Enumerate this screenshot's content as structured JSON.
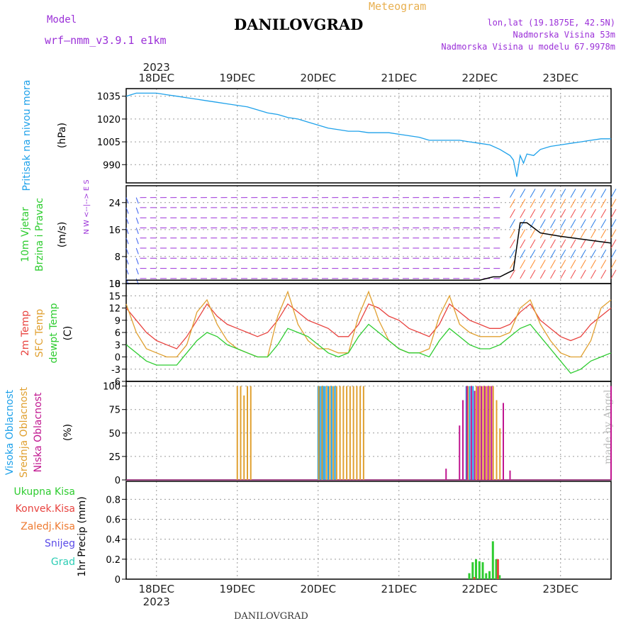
{
  "header": {
    "model_label": "Model",
    "model_name": "wrf—nmm_v3.9.1 e1km",
    "title": "DANILOVGRAD",
    "subtitle": "Meteogram",
    "coords": "lon,lat (19.1875E, 42.5N)",
    "elevation": "Nadmorska Visina 53m",
    "model_elevation": "Nadmorska Visina u modelu 67.9978m",
    "watermark": "made by Angel",
    "footer": "DANILOVGRAD"
  },
  "colors": {
    "pressure": "#1ea1ea",
    "wind": "#9b30d8",
    "temp2m": "#e8433f",
    "sfc": "#e0a030",
    "dewpt": "#2ecc30",
    "cloud_high": "#1ea1ea",
    "cloud_mid": "#e0a030",
    "cloud_low": "#c0158f",
    "precip_total": "#2ecc30",
    "precip_conv": "#e8433f",
    "precip_strat": "#ee7a30",
    "snow": "#5a4ae8",
    "graupel": "#2ecdb5",
    "label_black": "#000000"
  },
  "chart_data": [
    {
      "type": "line",
      "panel": "pressure",
      "xlabel_top": [
        "2023",
        "18DEC",
        "19DEC",
        "20DEC",
        "21DEC",
        "22DEC",
        "23DEC"
      ],
      "ylabel": [
        "Pritisak na nivou mora",
        "(hPa)"
      ],
      "yticks": [
        "1035",
        "1020",
        "1005",
        "990"
      ],
      "ylim": [
        978,
        1040
      ],
      "x": [
        -9,
        -6,
        -3,
        0,
        3,
        6,
        9,
        12,
        15,
        18,
        21,
        24,
        27,
        30,
        33,
        36,
        39,
        42,
        45,
        48,
        51,
        54,
        57,
        60,
        63,
        66,
        69,
        72,
        75,
        78,
        81,
        84,
        87,
        90,
        93,
        96,
        99,
        102,
        105,
        106,
        107,
        108,
        109,
        110,
        112,
        114,
        117,
        120,
        123,
        126,
        129,
        132,
        135
      ],
      "series": [
        {
          "values": [
            1035,
            1037,
            1037,
            1037,
            1036,
            1035,
            1034,
            1033,
            1032,
            1031,
            1030,
            1029,
            1028,
            1026,
            1024,
            1023,
            1021,
            1020,
            1018,
            1016,
            1014,
            1013,
            1012,
            1012,
            1011,
            1011,
            1011,
            1010,
            1009,
            1008,
            1006,
            1006,
            1006,
            1006,
            1005,
            1004,
            1003,
            1000,
            996,
            993,
            982,
            996,
            991,
            997,
            996,
            1000,
            1002,
            1003,
            1004,
            1005,
            1006,
            1007,
            1007
          ]
        }
      ]
    },
    {
      "type": "line",
      "panel": "wind",
      "ylabel": [
        "10m Vjetar",
        "Brzina i Pravac",
        "(m/s)"
      ],
      "compass": "N\nW <--|--> E\nS",
      "yticks": [
        "24",
        "16",
        "8",
        "0"
      ],
      "ylim": [
        0,
        29
      ],
      "x": [
        -9,
        0,
        24,
        48,
        72,
        96,
        100,
        102,
        104,
        106,
        108,
        110,
        114,
        120,
        135
      ],
      "series": [
        {
          "name": "wind speed",
          "values": [
            1,
            1,
            1,
            1,
            1,
            1,
            2,
            2,
            3,
            4,
            18,
            18,
            15,
            14,
            12
          ]
        }
      ]
    },
    {
      "type": "line",
      "panel": "temperature",
      "ylabel": [
        "2m Temp",
        "SFC Temp",
        "dewpt Temp",
        "(C)"
      ],
      "yticks": [
        "18",
        "15",
        "12",
        "9",
        "6",
        "3",
        "0",
        "-3",
        "-6"
      ],
      "ylim": [
        -6,
        18
      ],
      "x": [
        -9,
        -6,
        -3,
        0,
        3,
        6,
        9,
        12,
        15,
        18,
        21,
        24,
        27,
        30,
        33,
        36,
        39,
        42,
        45,
        48,
        51,
        54,
        57,
        60,
        63,
        66,
        69,
        72,
        75,
        78,
        81,
        84,
        87,
        90,
        93,
        96,
        99,
        102,
        105,
        108,
        111,
        114,
        117,
        120,
        123,
        126,
        129,
        132,
        135
      ],
      "series": [
        {
          "name": "2m Temp",
          "values": [
            12,
            9,
            6,
            4,
            3,
            2,
            5,
            9,
            13,
            10,
            8,
            7,
            6,
            5,
            6,
            9,
            13,
            11,
            9,
            8,
            7,
            5,
            5,
            8,
            13,
            12,
            10,
            9,
            7,
            6,
            5,
            8,
            13,
            11,
            9,
            8,
            7,
            7,
            8,
            11,
            13,
            9,
            7,
            5,
            4,
            5,
            8,
            10,
            12
          ]
        },
        {
          "name": "SFC Temp",
          "values": [
            13,
            6,
            2,
            1,
            0,
            0,
            3,
            11,
            14,
            8,
            4,
            2,
            1,
            0,
            0,
            10,
            16,
            8,
            4,
            2,
            2,
            1,
            1,
            10,
            16,
            9,
            4,
            2,
            1,
            1,
            2,
            10,
            15,
            8,
            6,
            5,
            5,
            5,
            6,
            12,
            14,
            8,
            4,
            1,
            0,
            0,
            4,
            12,
            14
          ]
        },
        {
          "name": "dewpt Temp",
          "values": [
            3,
            1,
            -1,
            -2,
            -2,
            -2,
            1,
            4,
            6,
            5,
            3,
            2,
            1,
            0,
            0,
            3,
            7,
            6,
            5,
            3,
            1,
            0,
            1,
            5,
            8,
            6,
            4,
            2,
            1,
            1,
            0,
            4,
            7,
            5,
            3,
            2,
            2,
            3,
            5,
            7,
            8,
            5,
            2,
            -1,
            -4,
            -3,
            -1,
            0,
            1
          ]
        }
      ]
    },
    {
      "type": "bar",
      "panel": "clouds",
      "ylabel": [
        "Visoka Oblacnost",
        "Srednja Oblacnost",
        "Niska Oblacnost",
        "(%)"
      ],
      "yticks": [
        "100",
        "75",
        "50",
        "25",
        "0"
      ],
      "ylim": [
        0,
        105
      ],
      "series": [
        {
          "name": "Visoka Oblacnost",
          "x": [
            48,
            48.5,
            49,
            49.5,
            50,
            51,
            52,
            53,
            92,
            93,
            94
          ],
          "values": [
            100,
            100,
            100,
            100,
            100,
            100,
            100,
            100,
            100,
            100,
            100
          ]
        },
        {
          "name": "Srednja Oblacnost",
          "x": [
            24,
            25,
            26,
            27,
            28,
            48.2,
            49.2,
            50.5,
            51.5,
            52.5,
            53.5,
            54.5,
            55.5,
            56.5,
            57.5,
            58.5,
            59.5,
            60.5,
            61.5,
            92.5,
            95,
            96,
            97,
            98,
            99,
            100,
            101,
            102,
            103
          ],
          "values": [
            100,
            100,
            90,
            100,
            100,
            100,
            100,
            100,
            100,
            100,
            100,
            100,
            100,
            100,
            100,
            100,
            100,
            100,
            100,
            100,
            100,
            100,
            100,
            100,
            100,
            100,
            85,
            55,
            50
          ]
        },
        {
          "name": "Niska Oblacnost",
          "x": [
            86,
            90,
            91,
            92.2,
            93.5,
            94.5,
            95.5,
            96.5,
            97.5,
            98.5,
            99.5,
            103,
            105,
            135
          ],
          "values": [
            12,
            58,
            85,
            100,
            100,
            95,
            100,
            100,
            100,
            100,
            100,
            82,
            10,
            100
          ]
        }
      ]
    },
    {
      "type": "bar",
      "panel": "precipitation",
      "ylabel": [
        "Ukupna Kisa",
        "Konvek.Kisa",
        "Zaledj.Kisa",
        "Snijeg",
        "Grad",
        "1hr Precip (mm)"
      ],
      "yticks": [
        "0.8",
        "0.6",
        "0.4",
        "0.2",
        "0"
      ],
      "ylim": [
        0,
        0.98
      ],
      "xlabel_bottom": [
        "18DEC",
        "19DEC",
        "20DEC",
        "21DEC",
        "22DEC",
        "23DEC",
        "2023"
      ],
      "series": [
        {
          "name": "Ukupna Kisa",
          "x": [
            93,
            94,
            95,
            96,
            97,
            98,
            99,
            100,
            101,
            102
          ],
          "values": [
            0.06,
            0.17,
            0.2,
            0.18,
            0.17,
            0.06,
            0.08,
            0.38,
            0.2,
            0.04
          ]
        },
        {
          "name": "Konvek.Kisa",
          "x": [
            94.5,
            101.5
          ],
          "values": [
            0.02,
            0.2
          ]
        }
      ]
    }
  ]
}
